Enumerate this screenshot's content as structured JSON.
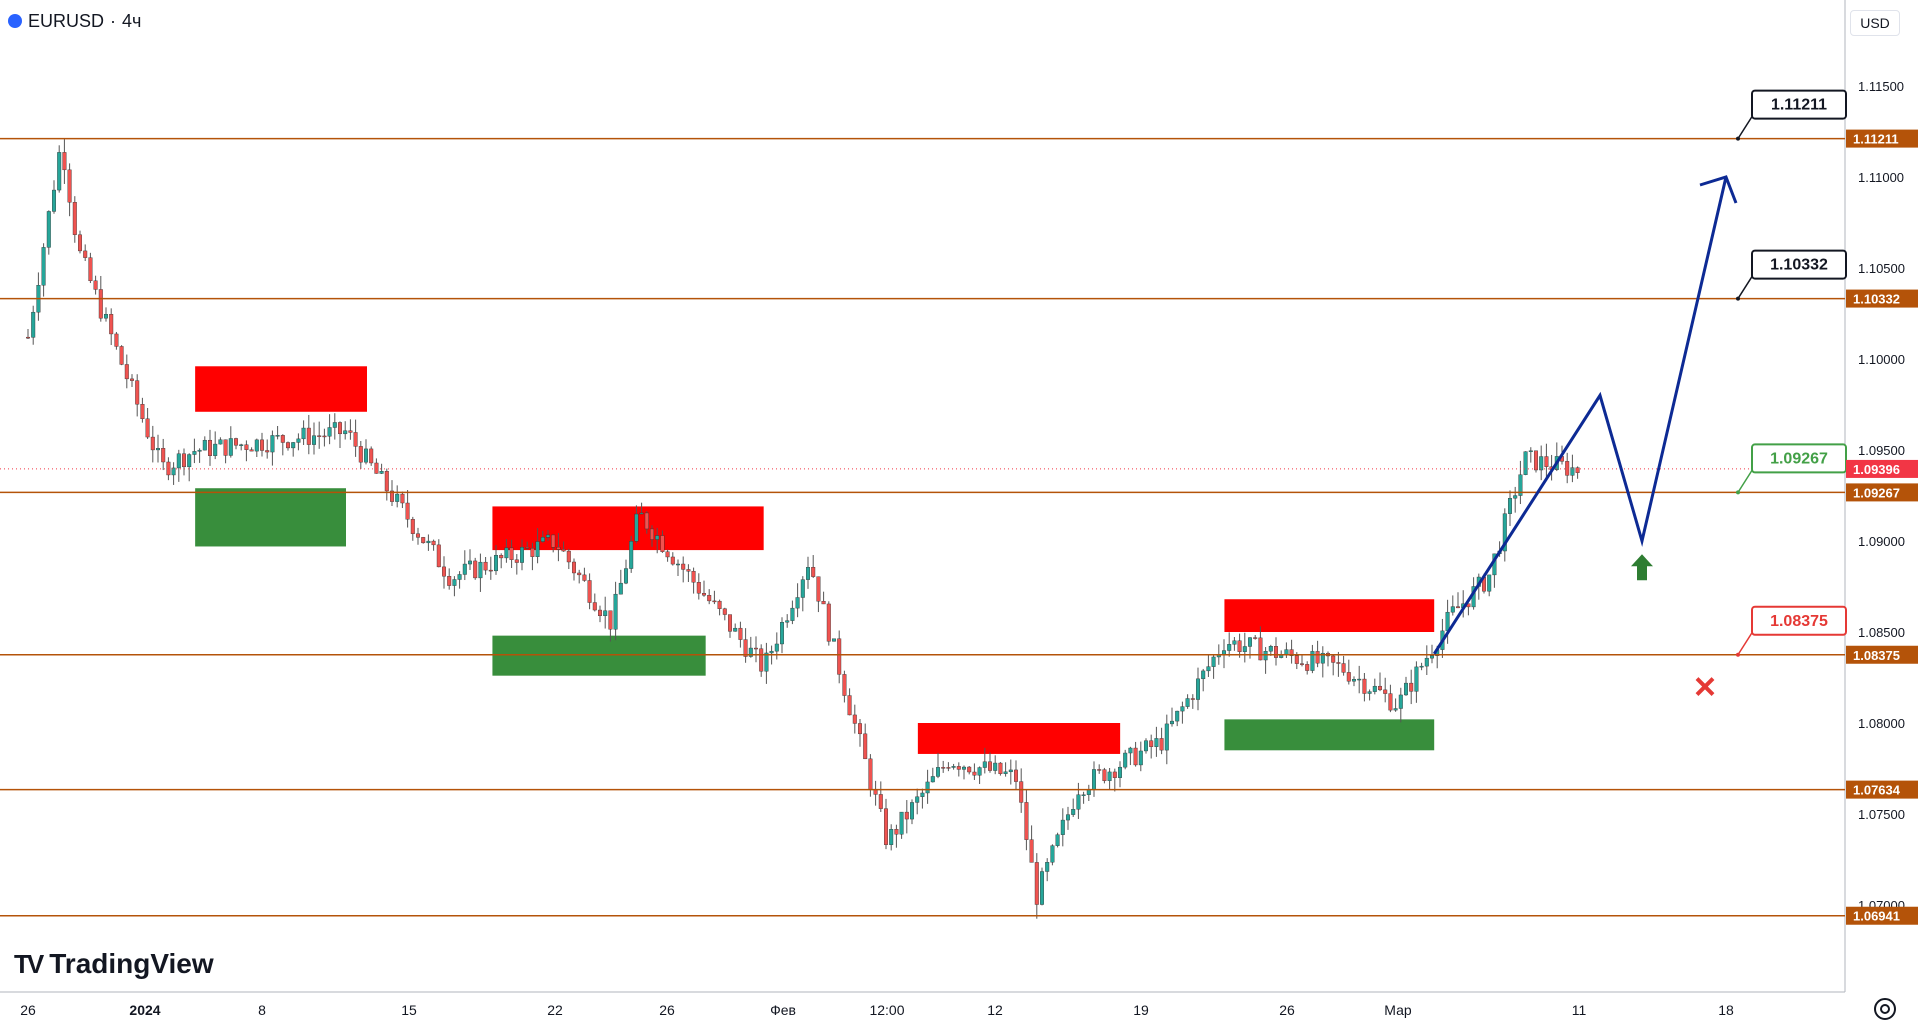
{
  "symbol": {
    "name": "EURUSD",
    "separator": "·",
    "interval": "4ч"
  },
  "currency_button": "USD",
  "brand": "TradingView",
  "chart_data": {
    "type": "candlestick",
    "symbol": "EURUSD",
    "interval": "4ч",
    "ylim": [
      1.0685,
      1.1195
    ],
    "y_ticks": [
      "1.11500",
      "1.11000",
      "1.10500",
      "1.10000",
      "1.09500",
      "1.09000",
      "1.08500",
      "1.08000",
      "1.07500",
      "1.07000"
    ],
    "x_ticks": [
      "26",
      "2024",
      "8",
      "15",
      "22",
      "26",
      "Фев",
      "12:00",
      "12",
      "19",
      "26",
      "Мар",
      "11",
      "18"
    ],
    "price_tags": [
      {
        "value": "1.11211",
        "color": "#b45309"
      },
      {
        "value": "1.10332",
        "color": "#b45309"
      },
      {
        "value": "1.09396",
        "color": "#f23645"
      },
      {
        "value": "1.09267",
        "color": "#b45309"
      },
      {
        "value": "1.08375",
        "color": "#b45309"
      },
      {
        "value": "1.07634",
        "color": "#b45309"
      },
      {
        "value": "1.06941",
        "color": "#b45309"
      }
    ],
    "horizontal_levels": [
      1.11211,
      1.10332,
      1.09267,
      1.08375,
      1.07634,
      1.06941
    ],
    "last_price": 1.09396,
    "callouts": [
      {
        "label": "1.11211",
        "value": 1.11211,
        "border": "#131722",
        "text_color": "#131722"
      },
      {
        "label": "1.10332",
        "value": 1.10332,
        "border": "#131722",
        "text_color": "#131722"
      },
      {
        "label": "1.09267",
        "value": 1.09267,
        "border": "#43a047",
        "text_color": "#43a047"
      },
      {
        "label": "1.08375",
        "value": 1.08375,
        "border": "#e53935",
        "text_color": "#e53935"
      }
    ],
    "supply_zones": [
      {
        "from": "Jan 4",
        "to": "Jan 13",
        "top": 1.0996,
        "bottom": 1.0971
      },
      {
        "from": "Jan 19",
        "to": "Jan 31",
        "top": 1.0919,
        "bottom": 1.0895
      },
      {
        "from": "Feb 7",
        "to": "Feb 18",
        "top": 1.08,
        "bottom": 1.0783
      },
      {
        "from": "Feb 23",
        "to": "Mar 3",
        "top": 1.0868,
        "bottom": 1.085
      }
    ],
    "demand_zones": [
      {
        "from": "Jan 4",
        "to": "Jan 12",
        "top": 1.0929,
        "bottom": 1.0897
      },
      {
        "from": "Jan 19",
        "to": "Jan 28",
        "top": 1.0848,
        "bottom": 1.0826
      },
      {
        "from": "Feb 23",
        "to": "Mar 3",
        "top": 1.0802,
        "bottom": 1.0785
      }
    ],
    "projection": {
      "color": "#0d2a94",
      "points": [
        {
          "x": "Mar 3",
          "y": 1.0838
        },
        {
          "x": "Mar 12",
          "y": 1.098
        },
        {
          "x": "Mar 14",
          "y": 1.09
        },
        {
          "x": "Mar 18",
          "y": 1.11
        }
      ]
    },
    "markers": [
      {
        "type": "up-arrow",
        "x": "Mar 14",
        "y": 1.0885,
        "color": "#2e7d32"
      },
      {
        "type": "cross",
        "x": "Mar 17",
        "y": 1.082,
        "color": "#e53935"
      }
    ],
    "series": [
      {
        "kind": "ohlc",
        "color_up": "#26a69a",
        "color_down": "#ef5350"
      },
      {
        "kind": "trailing-stop-down",
        "color": "#f23645"
      },
      {
        "kind": "trailing-stop-up",
        "color": "#43a047"
      }
    ]
  }
}
